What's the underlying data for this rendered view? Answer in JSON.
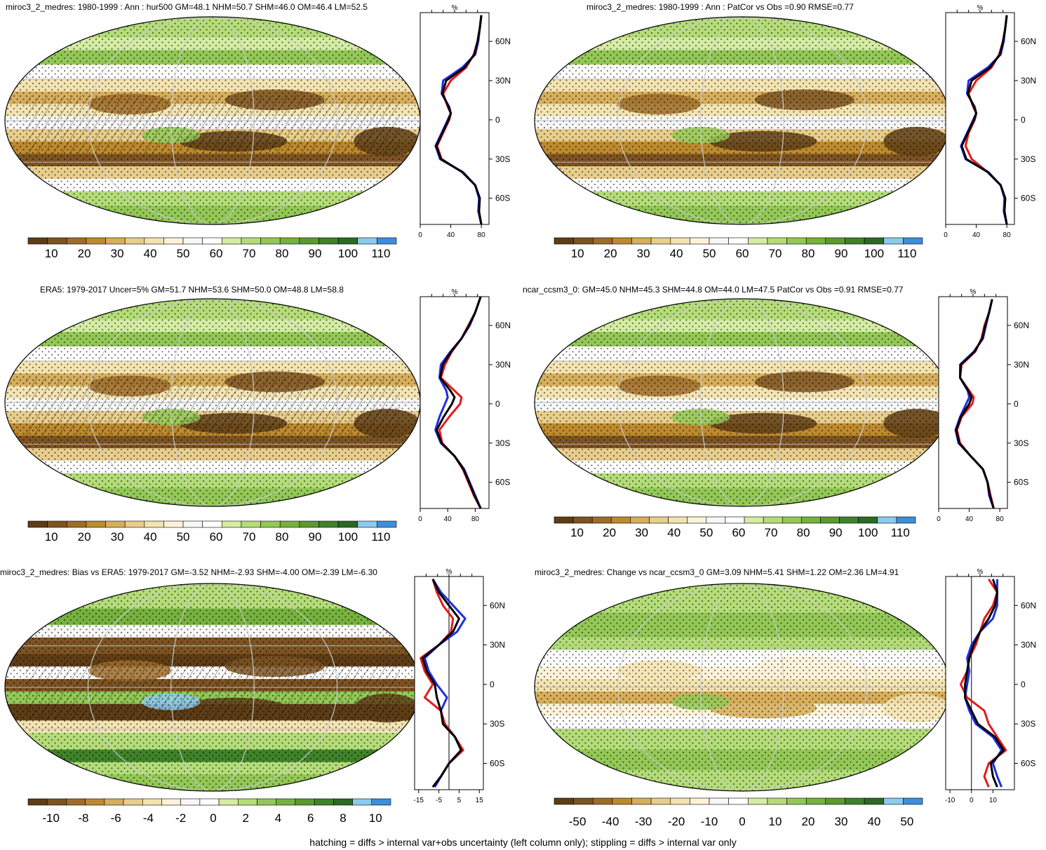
{
  "colors": {
    "hur_scale": [
      "#5e3d16",
      "#7d5322",
      "#9e6c29",
      "#bd8a2e",
      "#d6ae5c",
      "#e8cd8c",
      "#f3e3b1",
      "#fbf2d8",
      "#f7f7f7",
      "#ffffff",
      "#d4eca3",
      "#b4dc78",
      "#93c857",
      "#75b23e",
      "#5a9b31",
      "#3f8229",
      "#2b6a22",
      "#8ccaf0",
      "#3b8fdb"
    ],
    "diff_scale": [
      "#5e3d16",
      "#7d5322",
      "#9e6c29",
      "#bd8a2e",
      "#d6ae5c",
      "#e8cd8c",
      "#f3e3b1",
      "#fbf2d8",
      "#f7f7f7",
      "#ffffff",
      "#d4eca3",
      "#b4dc78",
      "#93c857",
      "#75b23e",
      "#5a9b31",
      "#3f8229",
      "#2b6a22",
      "#8ccaf0",
      "#3b8fdb"
    ],
    "line_red": "#e41a1c",
    "line_blue": "#1f2ee0",
    "line_black": "#000000"
  },
  "colorbar_labels": {
    "hur": [
      "10",
      "20",
      "30",
      "40",
      "50",
      "60",
      "70",
      "80",
      "90",
      "100",
      "110"
    ],
    "bias": [
      "-10",
      "-8",
      "-6",
      "-4",
      "-2",
      "0",
      "2",
      "4",
      "6",
      "8",
      "10"
    ],
    "change": [
      "-50",
      "-40",
      "-30",
      "-20",
      "-10",
      "0",
      "10",
      "20",
      "30",
      "40",
      "50"
    ]
  },
  "chart_data": [
    {
      "type": "heatmap",
      "id": "p1",
      "title": "miroc3_2_medres: 1980-1999 : Ann : hur500 GM=48.1 NHM=50.7 SHM=46.0 OM=46.4 LM=52.5",
      "colorbar": "hur",
      "profile": {
        "type": "line",
        "unit_label": "%",
        "xticks": [
          "0",
          "40",
          "80"
        ],
        "xlim": [
          0,
          90
        ],
        "yticks": [
          "60N",
          "30N",
          "0",
          "30S",
          "60S"
        ],
        "ylim": [
          -80,
          82
        ],
        "series": [
          {
            "color": "red",
            "lat": [
              80,
              70,
              60,
              50,
              40,
              30,
              20,
              10,
              5,
              0,
              -10,
              -20,
              -30,
              -40,
              -50,
              -60,
              -70,
              -80
            ],
            "values": [
              80,
              78,
              75,
              70,
              60,
              40,
              30,
              36,
              40,
              38,
              30,
              22,
              28,
              55,
              72,
              78,
              77,
              80
            ]
          },
          {
            "color": "blue",
            "lat": [
              80,
              70,
              60,
              50,
              40,
              30,
              20,
              10,
              5,
              0,
              -10,
              -20,
              -30,
              -40,
              -50,
              -60,
              -70,
              -80
            ],
            "values": [
              80,
              78,
              76,
              72,
              55,
              30,
              28,
              38,
              40,
              36,
              28,
              20,
              26,
              56,
              72,
              77,
              76,
              80
            ]
          },
          {
            "color": "black",
            "lat": [
              80,
              70,
              60,
              50,
              40,
              30,
              20,
              10,
              5,
              0,
              -10,
              -20,
              -30,
              -40,
              -50,
              -60,
              -70,
              -80
            ],
            "values": [
              80,
              78,
              75,
              71,
              58,
              34,
              29,
              37,
              40,
              37,
              29,
              21,
              27,
              55,
              72,
              78,
              77,
              80
            ]
          }
        ]
      }
    },
    {
      "type": "heatmap",
      "id": "p2",
      "title": "miroc3_2_medres: 1980-1999 : Ann : PatCor vs Obs =0.90 RMSE=0.77",
      "colorbar": "hur",
      "profile": {
        "type": "line",
        "unit_label": "%",
        "xticks": [
          "0",
          "40",
          "80"
        ],
        "xlim": [
          0,
          90
        ],
        "yticks": [
          "60N",
          "30N",
          "0",
          "30S",
          "60S"
        ],
        "ylim": [
          -80,
          82
        ],
        "series": [
          {
            "color": "red",
            "lat": [
              80,
              70,
              60,
              50,
              40,
              30,
              20,
              10,
              5,
              0,
              -10,
              -20,
              -30,
              -40,
              -50,
              -60,
              -70,
              -80
            ],
            "values": [
              80,
              78,
              75,
              70,
              60,
              40,
              30,
              36,
              40,
              38,
              30,
              26,
              34,
              55,
              72,
              78,
              77,
              80
            ]
          },
          {
            "color": "blue",
            "lat": [
              80,
              70,
              60,
              50,
              40,
              30,
              20,
              10,
              5,
              0,
              -10,
              -20,
              -30,
              -40,
              -50,
              -60,
              -70,
              -80
            ],
            "values": [
              80,
              78,
              76,
              72,
              55,
              30,
              28,
              38,
              40,
              36,
              28,
              20,
              26,
              56,
              72,
              77,
              76,
              80
            ]
          },
          {
            "color": "black",
            "lat": [
              80,
              70,
              60,
              50,
              40,
              30,
              20,
              10,
              5,
              0,
              -10,
              -20,
              -30,
              -40,
              -50,
              -60,
              -70,
              -80
            ],
            "values": [
              80,
              78,
              75,
              71,
              58,
              34,
              29,
              37,
              40,
              37,
              29,
              21,
              27,
              55,
              72,
              78,
              77,
              80
            ]
          }
        ]
      }
    },
    {
      "type": "heatmap",
      "id": "p3",
      "title": "ERA5: 1979-2017 Uncer=5% GM=51.7 NHM=53.6 SHM=50.0 OM=48.8 LM=58.8",
      "colorbar": "hur",
      "profile": {
        "type": "line",
        "unit_label": "%",
        "xticks": [
          "0",
          "40",
          "80"
        ],
        "xlim": [
          0,
          100
        ],
        "yticks": [
          "60N",
          "30N",
          "0",
          "30S",
          "60S"
        ],
        "ylim": [
          -80,
          82
        ],
        "series": [
          {
            "color": "red",
            "lat": [
              82,
              70,
              60,
              50,
              40,
              30,
              20,
              10,
              5,
              0,
              -10,
              -20,
              -30,
              -40,
              -50,
              -60,
              -70,
              -80
            ],
            "values": [
              88,
              80,
              70,
              60,
              46,
              36,
              30,
              50,
              60,
              58,
              42,
              28,
              32,
              50,
              62,
              70,
              78,
              88
            ]
          },
          {
            "color": "blue",
            "lat": [
              82,
              70,
              60,
              50,
              40,
              30,
              20,
              10,
              5,
              0,
              -10,
              -20,
              -30,
              -40,
              -50,
              -60,
              -70,
              -80
            ],
            "values": [
              88,
              80,
              72,
              60,
              44,
              30,
              28,
              38,
              40,
              36,
              28,
              22,
              30,
              50,
              64,
              72,
              80,
              88
            ]
          },
          {
            "color": "black",
            "lat": [
              82,
              70,
              60,
              50,
              40,
              30,
              20,
              10,
              5,
              0,
              -10,
              -20,
              -30,
              -40,
              -50,
              -60,
              -70,
              -80
            ],
            "values": [
              88,
              80,
              71,
              60,
              45,
              33,
              29,
              44,
              50,
              46,
              34,
              24,
              31,
              50,
              63,
              71,
              79,
              88
            ]
          }
        ]
      }
    },
    {
      "type": "heatmap",
      "id": "p4",
      "title": "ncar_ccsm3_0: GM=45.0 NHM=45.3 SHM=44.8 OM=44.0 LM=47.5 PatCor vs Obs =0.91 RMSE=0.77",
      "colorbar": "hur",
      "profile": {
        "type": "line",
        "unit_label": "%",
        "xticks": [
          "0",
          "40",
          "80"
        ],
        "xlim": [
          0,
          90
        ],
        "yticks": [
          "60N",
          "30N",
          "0",
          "30S",
          "60S"
        ],
        "ylim": [
          -80,
          82
        ],
        "series": [
          {
            "color": "red",
            "lat": [
              80,
              70,
              60,
              50,
              40,
              30,
              20,
              10,
              5,
              0,
              -10,
              -20,
              -30,
              -40,
              -50,
              -60,
              -70,
              -80
            ],
            "values": [
              70,
              66,
              60,
              56,
              48,
              30,
              28,
              40,
              46,
              44,
              30,
              24,
              28,
              42,
              58,
              64,
              68,
              72
            ]
          },
          {
            "color": "blue",
            "lat": [
              80,
              70,
              60,
              50,
              40,
              30,
              20,
              10,
              5,
              0,
              -10,
              -20,
              -30,
              -40,
              -50,
              -60,
              -70,
              -80
            ],
            "values": [
              70,
              66,
              62,
              58,
              46,
              28,
              28,
              38,
              40,
              36,
              28,
              22,
              26,
              42,
              58,
              64,
              66,
              72
            ]
          },
          {
            "color": "black",
            "lat": [
              80,
              70,
              60,
              50,
              40,
              30,
              20,
              10,
              5,
              0,
              -10,
              -20,
              -30,
              -40,
              -50,
              -60,
              -70,
              -80
            ],
            "values": [
              70,
              66,
              61,
              57,
              47,
              29,
              28,
              39,
              43,
              40,
              29,
              23,
              27,
              42,
              58,
              64,
              67,
              72
            ]
          }
        ]
      }
    },
    {
      "type": "heatmap",
      "id": "p5",
      "title": "miroc3_2_medres: Bias vs ERA5: 1979-2017 GM=-3.52 NHM=-2.93 SHM=-4.00 OM=-2.39 LM=-6.30",
      "colorbar": "bias",
      "profile": {
        "type": "line",
        "unit_label": "%",
        "xticks": [
          "-15",
          "-5",
          "5",
          "15"
        ],
        "xlim": [
          -17,
          17
        ],
        "zero_line": 0,
        "yticks": [
          "60N",
          "30N",
          "0",
          "30S",
          "60S"
        ],
        "ylim": [
          -80,
          82
        ],
        "series": [
          {
            "color": "red",
            "lat": [
              80,
              70,
              60,
              50,
              40,
              30,
              20,
              10,
              0,
              -10,
              -20,
              -30,
              -40,
              -50,
              -60,
              -70,
              -78
            ],
            "values": [
              -8,
              -6,
              -3,
              2,
              1,
              -5,
              -14,
              -12,
              -8,
              -12,
              -4,
              -2,
              3,
              7,
              0,
              -4,
              -8
            ]
          },
          {
            "color": "blue",
            "lat": [
              80,
              70,
              60,
              50,
              40,
              30,
              20,
              10,
              0,
              -10,
              -20,
              -30,
              -40,
              -50,
              -60,
              -70,
              -78
            ],
            "values": [
              -8,
              -4,
              2,
              8,
              4,
              -5,
              -12,
              -10,
              -6,
              -1,
              -4,
              -3,
              3,
              6,
              0,
              -4,
              -7
            ]
          },
          {
            "color": "black",
            "lat": [
              80,
              70,
              60,
              50,
              40,
              30,
              20,
              10,
              0,
              -10,
              -20,
              -30,
              -40,
              -50,
              -60,
              -70,
              -78
            ],
            "values": [
              -8,
              -5,
              0,
              5,
              2,
              -5,
              -13,
              -11,
              -7,
              -6,
              -4,
              -3,
              3,
              6,
              0,
              -4,
              -8
            ]
          }
        ]
      }
    },
    {
      "type": "heatmap",
      "id": "p6",
      "title": "miroc3_2_medres: Change vs ncar_ccsm3_0 GM=3.09 NHM=5.41 SHM=1.22 OM=2.36 LM=4.91",
      "colorbar": "change",
      "profile": {
        "type": "line",
        "unit_label": "%",
        "xticks": [
          "-10",
          "0",
          "10"
        ],
        "xlim": [
          -12,
          20
        ],
        "zero_line": 0,
        "yticks": [
          "60N",
          "30N",
          "0",
          "30S",
          "60S"
        ],
        "ylim": [
          -80,
          82
        ],
        "series": [
          {
            "color": "red",
            "lat": [
              80,
              70,
              60,
              50,
              40,
              30,
              20,
              10,
              0,
              -10,
              -20,
              -30,
              -40,
              -50,
              -60,
              -70,
              -78
            ],
            "values": [
              8,
              12,
              10,
              6,
              4,
              2,
              -1,
              -2,
              -5,
              -2,
              6,
              8,
              12,
              16,
              8,
              6,
              8
            ]
          },
          {
            "color": "blue",
            "lat": [
              80,
              70,
              60,
              50,
              40,
              30,
              20,
              10,
              0,
              -10,
              -20,
              -30,
              -40,
              -50,
              -60,
              -70,
              -78
            ],
            "values": [
              12,
              12,
              12,
              10,
              4,
              0,
              -2,
              -1,
              -2,
              -3,
              -1,
              2,
              10,
              14,
              10,
              12,
              14
            ]
          },
          {
            "color": "black",
            "lat": [
              80,
              70,
              60,
              50,
              40,
              30,
              20,
              10,
              0,
              -10,
              -20,
              -30,
              -40,
              -50,
              -60,
              -70,
              -78
            ],
            "values": [
              10,
              12,
              11,
              8,
              4,
              1,
              -1,
              -2,
              -3,
              -3,
              0,
              3,
              11,
              15,
              9,
              10,
              12
            ]
          }
        ]
      }
    }
  ],
  "footnote": "hatching = diffs > internal var+obs uncertainty (left column only); stippling = diffs > internal var only"
}
